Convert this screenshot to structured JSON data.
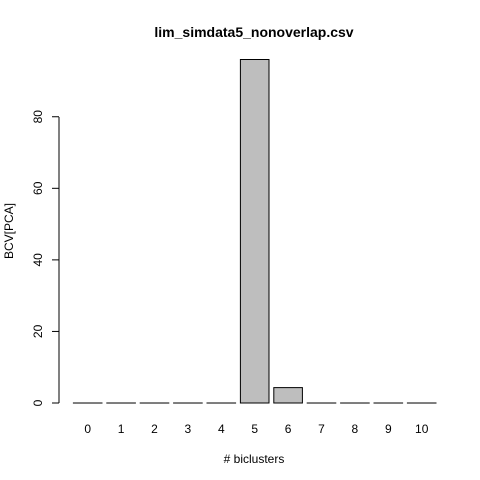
{
  "chart_data": {
    "type": "bar",
    "title": "lim_simdata5_nonoverlap.csv",
    "xlabel": "# biclusters",
    "ylabel": "BCV[PCA]",
    "categories": [
      "0",
      "1",
      "2",
      "3",
      "4",
      "5",
      "6",
      "7",
      "8",
      "9",
      "10"
    ],
    "values": [
      0,
      0,
      0,
      0,
      0,
      96,
      4.3,
      0,
      0,
      0,
      0
    ],
    "yticks": [
      0,
      20,
      40,
      60,
      80
    ],
    "ylim": [
      0,
      96
    ],
    "grid": false,
    "legend": "none",
    "bar_color": "#bebebe",
    "bar_border_color": "#000000"
  }
}
